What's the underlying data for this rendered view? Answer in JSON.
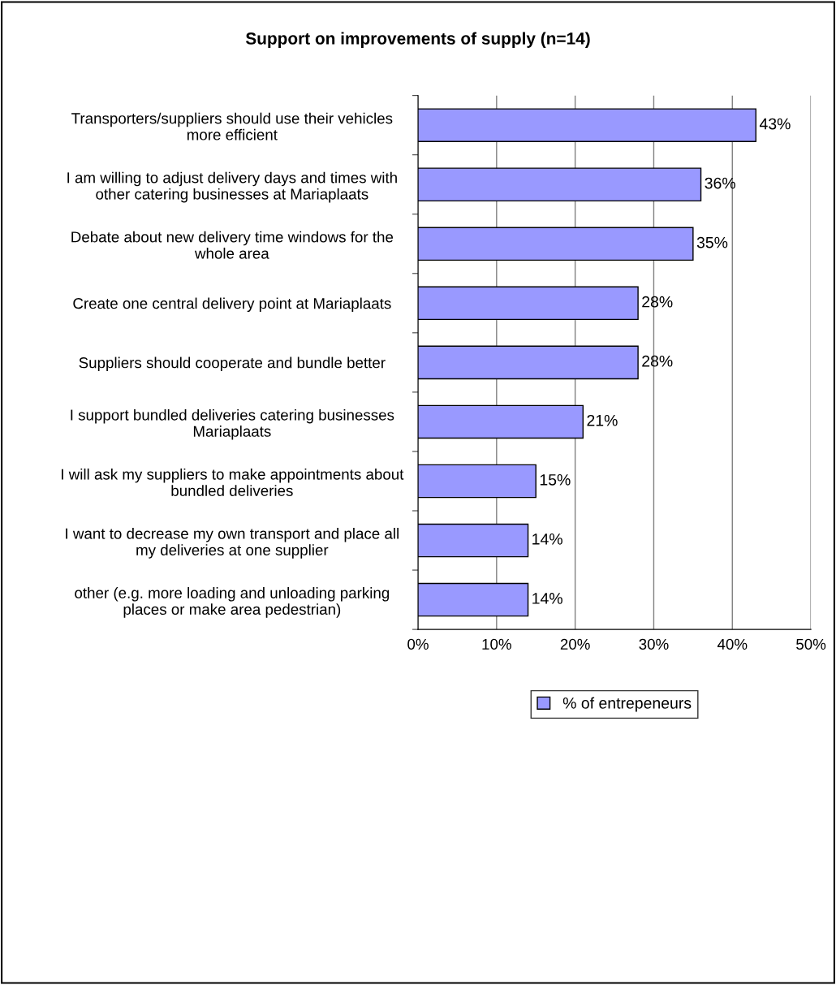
{
  "chart_data": {
    "type": "bar",
    "orientation": "horizontal",
    "title": "Support on improvements of supply (n=14)",
    "categories": [
      "Transporters/suppliers should use their vehicles\nmore efficient",
      "I am willing to adjust delivery days and times with\nother catering businesses at Mariaplaats",
      "Debate about new delivery time windows for the\nwhole area",
      "Create one central delivery point at Mariaplaats",
      "Suppliers should cooperate and bundle better",
      "I support bundled deliveries catering businesses\nMariaplaats",
      "I will ask my suppliers to make appointments about\nbundled deliveries",
      "I want to decrease my own transport and place all\nmy deliveries at one supplier",
      "other (e.g. more loading and unloading parking\nplaces or make area pedestrian)"
    ],
    "series": [
      {
        "name": "% of entrepeneurs",
        "color": "#9999ff",
        "values": [
          43,
          36,
          35,
          28,
          28,
          21,
          15,
          14,
          14
        ],
        "value_labels": [
          "43%",
          "36%",
          "35%",
          "28%",
          "28%",
          "21%",
          "15%",
          "14%",
          "14%"
        ]
      }
    ],
    "xlim": [
      0,
      50
    ],
    "xticks": [
      {
        "value": 0,
        "label": "0%"
      },
      {
        "value": 10,
        "label": "10%"
      },
      {
        "value": 20,
        "label": "20%"
      },
      {
        "value": 30,
        "label": "30%"
      },
      {
        "value": 40,
        "label": "40%"
      },
      {
        "value": 50,
        "label": "50%"
      }
    ],
    "grid": "x",
    "legend": "bottom"
  }
}
